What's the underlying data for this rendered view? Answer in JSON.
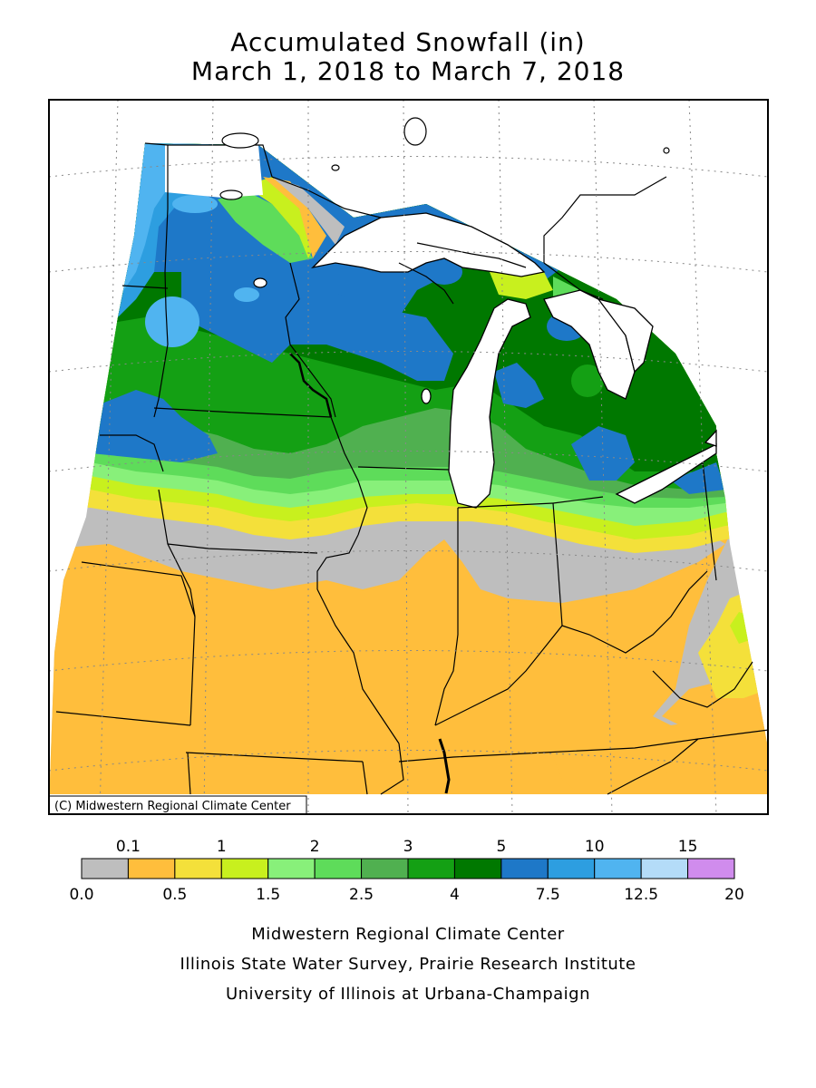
{
  "title": "Accumulated Snowfall (in)",
  "subtitle": "March 1, 2018 to March 7, 2018",
  "map": {
    "copyright": "(C) Midwestern Regional Climate Center",
    "land_no_data_color": "#ffffff",
    "boundary_color": "#000000"
  },
  "legend": {
    "bins": [
      {
        "color": "#bebebe"
      },
      {
        "color": "#ffbe3c"
      },
      {
        "color": "#f4e03a"
      },
      {
        "color": "#c8f01e"
      },
      {
        "color": "#88f07a"
      },
      {
        "color": "#5edc5a"
      },
      {
        "color": "#50b050"
      },
      {
        "color": "#14a014"
      },
      {
        "color": "#007800"
      },
      {
        "color": "#1e78c8"
      },
      {
        "color": "#2d9ee0"
      },
      {
        "color": "#50b4f0"
      },
      {
        "color": "#b4dcf8"
      },
      {
        "color": "#d08ced"
      }
    ],
    "top_labels": [
      "0.1",
      "1",
      "2",
      "3",
      "5",
      "10",
      "15"
    ],
    "bottom_labels": [
      "0.0",
      "0.5",
      "1.5",
      "2.5",
      "4",
      "7.5",
      "12.5",
      "20"
    ]
  },
  "credits": [
    "Midwestern Regional Climate Center",
    "Illinois State Water Survey, Prairie Research Institute",
    "University of Illinois at Urbana-Champaign"
  ]
}
